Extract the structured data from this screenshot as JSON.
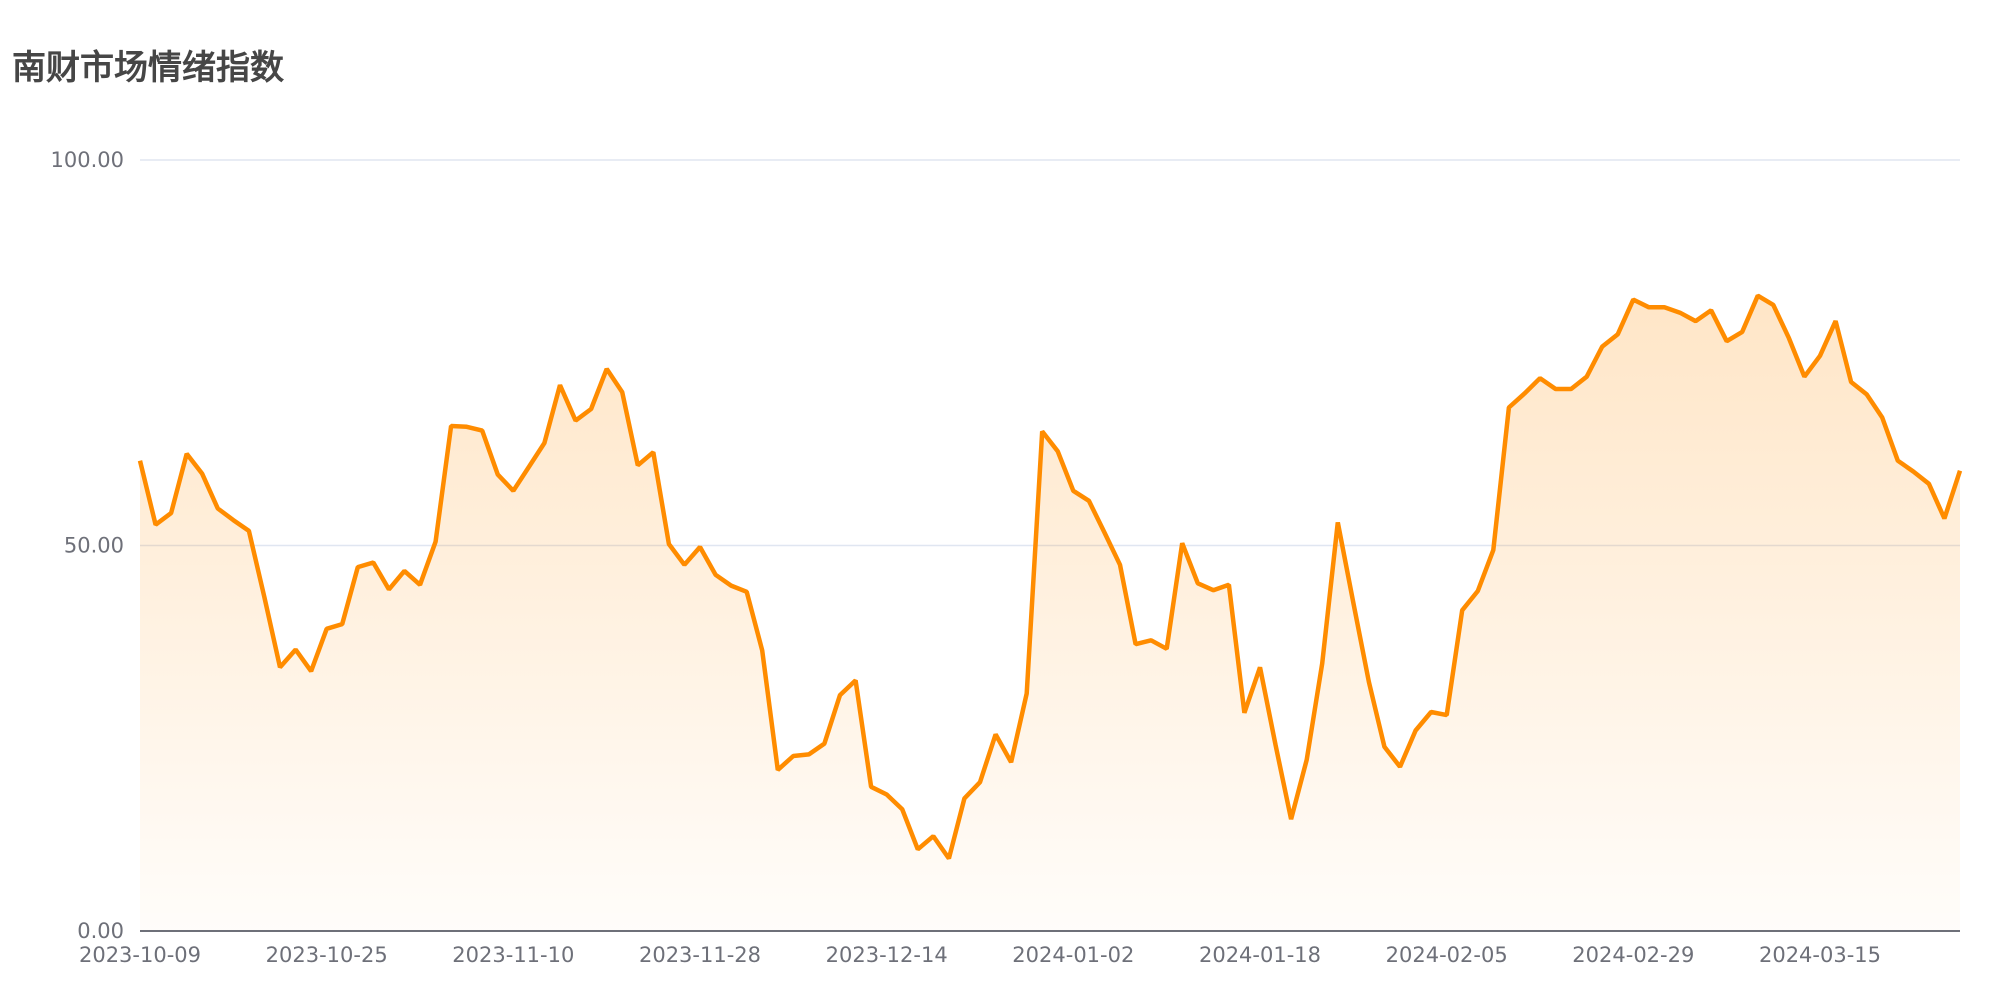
{
  "title": "南财市场情绪指数",
  "chart_data": {
    "type": "area",
    "title": "南财市场情绪指数",
    "xlabel": "",
    "ylabel": "",
    "ylim": [
      0,
      100
    ],
    "y_ticks": [
      "0.00",
      "50.00",
      "100.00"
    ],
    "y_tick_values": [
      0,
      50,
      100
    ],
    "x_tick_labels": [
      "2023-10-09",
      "2023-10-25",
      "2023-11-10",
      "2023-11-28",
      "2023-12-14",
      "2024-01-02",
      "2024-01-18",
      "2024-02-05",
      "2024-02-29",
      "2024-03-15"
    ],
    "x_tick_every": 12,
    "grid": true,
    "legend": "none",
    "colors": {
      "line": "#ff8c00",
      "area": "#ffe2b8",
      "grid": "#e0e6f1",
      "axis": "#6e7079"
    },
    "values": [
      61.0,
      52.7,
      54.2,
      61.9,
      59.3,
      54.8,
      53.3,
      51.9,
      43.3,
      34.2,
      36.5,
      33.7,
      39.2,
      39.8,
      47.2,
      47.8,
      44.3,
      46.7,
      44.9,
      50.5,
      65.5,
      65.4,
      64.9,
      59.2,
      57.1,
      60.2,
      63.3,
      70.8,
      66.2,
      67.7,
      72.9,
      69.9,
      60.4,
      62.1,
      50.2,
      47.5,
      49.8,
      46.2,
      44.8,
      44.0,
      36.4,
      20.9,
      22.7,
      22.9,
      24.3,
      30.6,
      32.5,
      18.7,
      17.7,
      15.8,
      10.6,
      12.3,
      9.4,
      17.2,
      19.3,
      25.5,
      21.9,
      30.8,
      64.8,
      62.2,
      57.1,
      55.8,
      51.7,
      47.5,
      37.2,
      37.7,
      36.6,
      50.3,
      45.1,
      44.2,
      44.9,
      28.3,
      34.2,
      24.1,
      14.5,
      22.2,
      34.7,
      53.0,
      42.6,
      32.3,
      23.9,
      21.3,
      26.0,
      28.4,
      28.0,
      41.6,
      44.1,
      49.4,
      67.9,
      69.7,
      71.7,
      70.3,
      70.3,
      71.9,
      75.8,
      77.4,
      81.9,
      80.9,
      80.9,
      80.2,
      79.1,
      80.5,
      76.5,
      77.7,
      82.4,
      81.2,
      76.9,
      71.9,
      74.6,
      79.1,
      71.2,
      69.6,
      66.6,
      61.0,
      59.6,
      58.0,
      53.5,
      59.7
    ]
  }
}
